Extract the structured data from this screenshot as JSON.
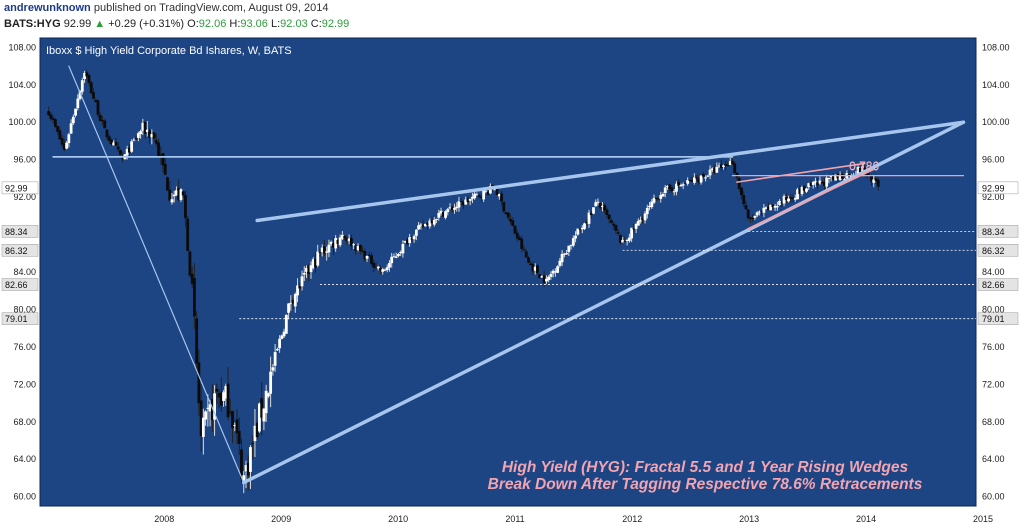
{
  "header": {
    "user": "andrewunknown",
    "published": "published on TradingView.com, August 09, 2014",
    "symbol": "BATS:HYG",
    "last": "92.99",
    "up_arrow": "▲",
    "change": "+0.29 (+0.31%)",
    "o_label": "O:",
    "o": "92.06",
    "h_label": "H:",
    "h": "93.06",
    "l_label": "L:",
    "l": "92.03",
    "c_label": "C:",
    "c": "92.99"
  },
  "colors": {
    "plot_bg": "#1d4483",
    "border": "#0d2550",
    "candle_up": "#ffffff",
    "candle_down": "#0b0b0b",
    "wedge": "#a6c6ee",
    "fractal": "#f1a3ad",
    "annotation": "#f2a4b0",
    "price_tag_bg": "#ffffff",
    "level_tag_bg": "#e4e4e4"
  },
  "chart_data": {
    "type": "candlestick",
    "title": "Iboxx $ High Yield Corporate Bd Ishares, W, BATS",
    "x_ticks": [
      "2008",
      "2009",
      "2010",
      "2011",
      "2012",
      "2013",
      "2014",
      "2015"
    ],
    "ylim": [
      59,
      109
    ],
    "y_ticks": [
      "60.00",
      "64.00",
      "68.00",
      "72.00",
      "76.00",
      "80.00",
      "84.00",
      "88.00",
      "92.00",
      "96.00",
      "100.00",
      "104.00",
      "108.00"
    ],
    "current_price": "92.99",
    "level_tags": [
      "88.34",
      "86.32",
      "82.66",
      "79.01"
    ],
    "fib_labels": [
      "0.786",
      "0.786"
    ],
    "annotation": [
      "High Yield (HYG): Fractal 5.5 and 1 Year Rising Wedges",
      "Break Down After Tagging Respective 78.6% Retracements"
    ],
    "anchors": [
      [
        "2007-07-06",
        101.2
      ],
      [
        "2007-08-24",
        97.0
      ],
      [
        "2007-10-26",
        105.5
      ],
      [
        "2007-12-28",
        99.0
      ],
      [
        "2008-02-22",
        96.0
      ],
      [
        "2008-04-25",
        99.5
      ],
      [
        "2008-05-30",
        98.5
      ],
      [
        "2008-07-18",
        92.5
      ],
      [
        "2008-08-29",
        92.0
      ],
      [
        "2008-09-26",
        82.0
      ],
      [
        "2008-10-24",
        66.0
      ],
      [
        "2008-12-12",
        71.0
      ],
      [
        "2009-01-23",
        70.0
      ],
      [
        "2009-03-06",
        62.0
      ],
      [
        "2009-05-22",
        72.0
      ],
      [
        "2009-07-31",
        81.0
      ],
      [
        "2009-10-30",
        86.0
      ],
      [
        "2010-01-08",
        88.0
      ],
      [
        "2010-05-14",
        84.0
      ],
      [
        "2010-08-13",
        88.0
      ],
      [
        "2010-10-29",
        90.0
      ],
      [
        "2011-02-25",
        92.0
      ],
      [
        "2011-04-29",
        93.0
      ],
      [
        "2011-08-12",
        85.0
      ],
      [
        "2011-10-07",
        83.0
      ],
      [
        "2011-12-30",
        87.5
      ],
      [
        "2012-03-16",
        91.5
      ],
      [
        "2012-06-01",
        87.0
      ],
      [
        "2012-09-28",
        92.5
      ],
      [
        "2013-01-25",
        94.0
      ],
      [
        "2013-05-10",
        95.8
      ],
      [
        "2013-06-28",
        89.5
      ],
      [
        "2013-09-13",
        91.0
      ],
      [
        "2013-12-27",
        93.0
      ],
      [
        "2014-03-28",
        94.0
      ],
      [
        "2014-06-20",
        95.0
      ],
      [
        "2014-07-18",
        94.0
      ],
      [
        "2014-08-08",
        93.0
      ]
    ],
    "drawings": {
      "fractal_low_line": [
        [
          "2009-03-06",
          61.5
        ],
        [
          "2015-05-01",
          100.0
        ]
      ],
      "fractal_high_line": [
        [
          "2009-04-17",
          89.5
        ],
        [
          "2015-05-01",
          100.0
        ]
      ],
      "fractal_78_6_level": [
        [
          "2007-07-20",
          96.3
        ],
        [
          "2013-05-10",
          96.3
        ]
      ],
      "crash_line": [
        [
          "2007-09-07",
          106.0
        ],
        [
          "2009-03-06",
          61.5
        ]
      ],
      "wedge_1y_low": [
        [
          "2013-06-28",
          88.6
        ],
        [
          "2014-07-25",
          95.0
        ]
      ],
      "wedge_1y_high": [
        [
          "2013-05-24",
          93.6
        ],
        [
          "2014-06-27",
          95.6
        ]
      ],
      "one_year_78_6_level": [
        [
          "2013-05-10",
          94.3
        ],
        [
          "2015-05-01",
          94.3
        ]
      ],
      "dashed_levels": [
        {
          "from": "2013-06-28",
          "value": 88.34
        },
        {
          "from": "2012-06-01",
          "value": 86.32
        },
        {
          "from": "2009-10-30",
          "value": 82.66
        },
        {
          "from": "2009-02-20",
          "value": 79.01
        }
      ]
    }
  }
}
